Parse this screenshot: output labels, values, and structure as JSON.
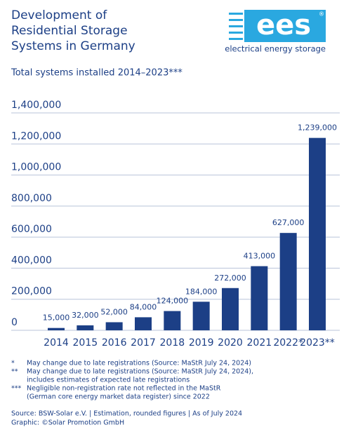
{
  "chart_data": {
    "type": "bar",
    "title": [
      "Development of",
      "Residential Storage",
      "Systems in Germany"
    ],
    "subtitle": "Total systems installed 2014–2023***",
    "logo": {
      "text": "ees",
      "mark": "®",
      "tagline": "electrical energy storage"
    },
    "categories": [
      "2014",
      "2015",
      "2016",
      "2017",
      "2018",
      "2019",
      "2020",
      "2021",
      "2022*",
      "2023**"
    ],
    "values": [
      15000,
      32000,
      52000,
      84000,
      124000,
      184000,
      272000,
      413000,
      627000,
      1239000
    ],
    "value_labels": [
      "15,000",
      "32,000",
      "52,000",
      "84,000",
      "124,000",
      "184,000",
      "272,000",
      "413,000",
      "627,000",
      "1,239,000"
    ],
    "color": "#1c3f86",
    "ylim": [
      0,
      1400000
    ],
    "yticks": [
      0,
      {
        "value": 200000,
        "label": "200,000"
      },
      {
        "value": 400000,
        "label": "400,000"
      },
      {
        "value": 600000,
        "label": "600,000"
      },
      {
        "value": 800000,
        "label": "800,000"
      },
      {
        "value": 1000000,
        "label": "1,000,000"
      },
      {
        "value": 1200000,
        "label": "1,200,000"
      },
      {
        "value": 1400000,
        "label": "1,400,000"
      }
    ],
    "grid": true,
    "footnotes": [
      {
        "marker": "*",
        "lines": [
          "May change due to late registrations (Source: MaStR July 24, 2024)"
        ]
      },
      {
        "marker": "**",
        "lines": [
          "May change due to late registrations (Source: MaStR July 24, 2024),",
          "includes estimates of expected late registrations"
        ]
      },
      {
        "marker": "***",
        "lines": [
          "Negligible non-registration rate not reflected in the MaStR",
          "(German core energy market data register) since 2022"
        ]
      }
    ],
    "source": [
      "Source: BSW-Solar e.V. | Estimation, rounded figures | As of July 2024",
      "Graphic: ©Solar Promotion GmbH"
    ]
  }
}
